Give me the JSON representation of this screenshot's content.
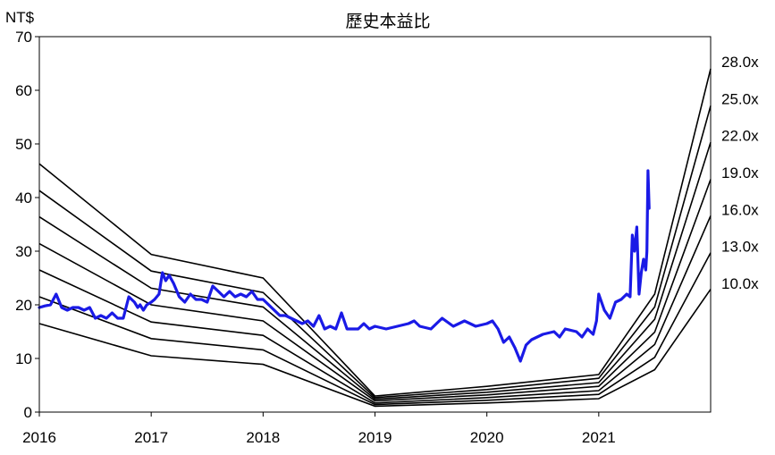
{
  "chart_data": {
    "type": "line",
    "title": "歷史本益比",
    "ylabel": "NT$",
    "ylim": [
      0,
      70
    ],
    "yticks": [
      0,
      10,
      20,
      30,
      40,
      50,
      60,
      70
    ],
    "xlim": [
      2016.0,
      2022.0
    ],
    "xticks": [
      {
        "value": 2016,
        "label": "2016"
      },
      {
        "value": 2017,
        "label": "2017"
      },
      {
        "value": 2018,
        "label": "2018"
      },
      {
        "value": 2019,
        "label": "2019"
      },
      {
        "value": 2020,
        "label": "2020"
      },
      {
        "value": 2021,
        "label": "2021"
      }
    ],
    "grid": false,
    "band_x": [
      2016.0,
      2017.0,
      2018.0,
      2019.0,
      2020.0,
      2021.0,
      2021.5,
      2022.0
    ],
    "bands": [
      {
        "name": "28.0x",
        "values": [
          46.3,
          29.4,
          25.0,
          3.0,
          4.8,
          7.0,
          22.0,
          64.0
        ]
      },
      {
        "name": "25.0x",
        "values": [
          41.3,
          26.3,
          22.3,
          2.7,
          4.2,
          6.3,
          19.6,
          57.1
        ]
      },
      {
        "name": "22.0x",
        "values": [
          36.4,
          23.1,
          19.6,
          2.4,
          3.7,
          5.5,
          17.3,
          50.3
        ]
      },
      {
        "name": "19.0x",
        "values": [
          31.4,
          20.0,
          17.0,
          2.1,
          3.2,
          4.8,
          14.9,
          43.4
        ]
      },
      {
        "name": "16.0x",
        "values": [
          26.5,
          16.8,
          14.3,
          1.7,
          2.7,
          4.0,
          12.6,
          36.6
        ]
      },
      {
        "name": "13.0x",
        "values": [
          21.5,
          13.7,
          11.6,
          1.4,
          2.2,
          3.3,
          10.2,
          29.7
        ]
      },
      {
        "name": "10.0x",
        "values": [
          16.5,
          10.5,
          8.9,
          1.1,
          1.7,
          2.5,
          7.9,
          22.9
        ]
      }
    ],
    "price": {
      "x": [
        2016.0,
        2016.05,
        2016.1,
        2016.15,
        2016.2,
        2016.25,
        2016.3,
        2016.35,
        2016.4,
        2016.45,
        2016.5,
        2016.55,
        2016.6,
        2016.65,
        2016.7,
        2016.75,
        2016.8,
        2016.85,
        2016.88,
        2016.9,
        2016.93,
        2016.96,
        2017.0,
        2017.03,
        2017.07,
        2017.1,
        2017.13,
        2017.16,
        2017.2,
        2017.25,
        2017.3,
        2017.35,
        2017.4,
        2017.45,
        2017.5,
        2017.55,
        2017.6,
        2017.65,
        2017.7,
        2017.75,
        2017.8,
        2017.85,
        2017.9,
        2017.95,
        2018.0,
        2018.05,
        2018.1,
        2018.15,
        2018.2,
        2018.25,
        2018.3,
        2018.35,
        2018.4,
        2018.45,
        2018.5,
        2018.55,
        2018.6,
        2018.65,
        2018.7,
        2018.75,
        2018.8,
        2018.85,
        2018.9,
        2018.95,
        2019.0,
        2019.1,
        2019.2,
        2019.3,
        2019.35,
        2019.4,
        2019.5,
        2019.55,
        2019.6,
        2019.7,
        2019.75,
        2019.8,
        2019.9,
        2020.0,
        2020.05,
        2020.1,
        2020.15,
        2020.2,
        2020.25,
        2020.3,
        2020.35,
        2020.4,
        2020.5,
        2020.6,
        2020.65,
        2020.7,
        2020.8,
        2020.85,
        2020.9,
        2020.95,
        2020.98,
        2021.0,
        2021.05,
        2021.1,
        2021.15,
        2021.2,
        2021.25,
        2021.28,
        2021.3,
        2021.32,
        2021.34,
        2021.36,
        2021.38,
        2021.4,
        2021.42,
        2021.43,
        2021.44,
        2021.45
      ],
      "y": [
        19.5,
        19.8,
        20.0,
        22.0,
        19.5,
        19.0,
        19.5,
        19.5,
        19.0,
        19.5,
        17.5,
        18.0,
        17.5,
        18.5,
        17.5,
        17.5,
        21.5,
        20.5,
        19.5,
        20.0,
        19.0,
        20.0,
        20.5,
        21.0,
        22.0,
        26.0,
        24.5,
        25.5,
        24.0,
        21.5,
        20.5,
        22.0,
        21.0,
        21.0,
        20.5,
        23.5,
        22.5,
        21.5,
        22.5,
        21.5,
        22.0,
        21.5,
        22.5,
        21.0,
        21.0,
        20.0,
        19.0,
        18.0,
        18.0,
        17.5,
        17.0,
        16.5,
        17.0,
        16.0,
        18.0,
        15.5,
        16.0,
        15.5,
        18.5,
        15.5,
        15.5,
        15.5,
        16.5,
        15.5,
        16.0,
        15.5,
        16.0,
        16.5,
        17.0,
        16.0,
        15.5,
        16.5,
        17.5,
        16.0,
        16.5,
        17.0,
        16.0,
        16.5,
        17.0,
        15.5,
        13.0,
        14.0,
        12.0,
        9.5,
        12.5,
        13.5,
        14.5,
        15.0,
        14.0,
        15.5,
        15.0,
        14.0,
        15.5,
        14.5,
        17.0,
        22.0,
        19.0,
        17.5,
        20.5,
        21.0,
        22.0,
        21.5,
        33.0,
        30.0,
        34.5,
        22.0,
        26.0,
        28.5,
        26.5,
        30.0,
        45.0,
        38.0
      ]
    }
  }
}
